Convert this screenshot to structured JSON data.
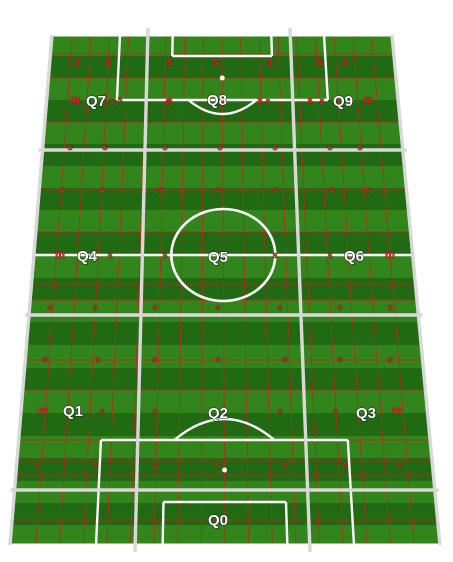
{
  "colors": {
    "grass_dark": "#1f6a12",
    "grass_light": "#3f9a22",
    "pitch_line": "#ffffff",
    "zone_line": "#d8d8d8",
    "grid_line": "#c0251d",
    "marker": "#e8262a"
  },
  "zones": [
    {
      "id": "Q0",
      "label": "Q0"
    },
    {
      "id": "Q1",
      "label": "Q1"
    },
    {
      "id": "Q2",
      "label": "Q2"
    },
    {
      "id": "Q3",
      "label": "Q3"
    },
    {
      "id": "Q4",
      "label": "Q4"
    },
    {
      "id": "Q5",
      "label": "Q5"
    },
    {
      "id": "Q6",
      "label": "Q6"
    },
    {
      "id": "Q7",
      "label": "Q7"
    },
    {
      "id": "Q8",
      "label": "Q8"
    },
    {
      "id": "Q9",
      "label": "Q9"
    }
  ],
  "markers": {
    "s": "s",
    "m": "m"
  }
}
